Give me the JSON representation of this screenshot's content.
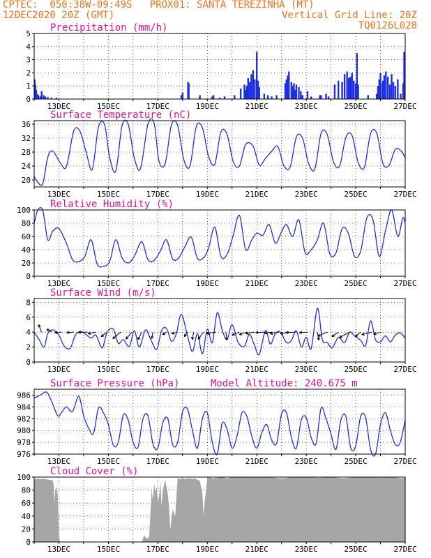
{
  "header": {
    "line1_left": "CPTEC:  050:38W-09:49S   PROX01: SANTA TEREZINHA (MT)",
    "line2_left": "12DEC2020 20Z (GMT)",
    "line2_right": "Vertical Grid Line: 20Z",
    "line3_right": "TQ0126L028"
  },
  "colors": {
    "header": "#e8731c",
    "title": "#e0139b",
    "line": "#1f2fe0",
    "cloud": "#a6a6a6",
    "arrow": "#000000"
  },
  "x_axis": {
    "tick_labels": [
      "13DEC",
      "15DEC",
      "17DEC",
      "19DEC",
      "21DEC",
      "23DEC",
      "25DEC",
      "27DEC"
    ],
    "tick_days": [
      13,
      15,
      17,
      19,
      21,
      23,
      25,
      27
    ],
    "range_days": [
      12.0,
      27.0
    ]
  },
  "chart_data": [
    {
      "type": "bar",
      "title": "Precipitation (mm/h)",
      "ylim": [
        0,
        5
      ],
      "yticks": [
        0,
        1,
        2,
        3,
        4,
        5
      ],
      "x_days": [
        12.02,
        12.05,
        12.08,
        12.12,
        12.17,
        12.25,
        12.3,
        12.38,
        12.45,
        12.55,
        12.7,
        12.9,
        17.95,
        18.0,
        18.22,
        18.25,
        18.7,
        19.2,
        19.25,
        19.5,
        19.7,
        20.1,
        20.35,
        20.5,
        20.55,
        20.6,
        20.65,
        20.72,
        20.78,
        20.85,
        20.92,
        21.0,
        21.05,
        21.1,
        21.3,
        21.45,
        21.6,
        21.8,
        22.15,
        22.2,
        22.25,
        22.3,
        22.4,
        22.45,
        22.5,
        22.55,
        22.6,
        22.7,
        22.78,
        22.85,
        23.05,
        23.2,
        23.55,
        23.6,
        23.8,
        23.9,
        24.15,
        24.3,
        24.45,
        24.55,
        24.65,
        24.72,
        24.78,
        24.85,
        24.92,
        25.0,
        25.05,
        25.1,
        25.5,
        25.85,
        25.9,
        25.95,
        26.0,
        26.02,
        26.1,
        26.15,
        26.22,
        26.3,
        26.38,
        26.45,
        26.52,
        26.6,
        26.7,
        26.82,
        26.92,
        26.96
      ],
      "values": [
        1.5,
        1.1,
        0.7,
        0.4,
        0.3,
        0.2,
        0.6,
        0.3,
        0.2,
        0.15,
        0.1,
        0.1,
        0.3,
        0.5,
        1.3,
        1.2,
        0.3,
        0.2,
        0.3,
        0.1,
        0.2,
        0.3,
        0.8,
        1.1,
        0.7,
        1.0,
        1.6,
        1.3,
        1.9,
        2.2,
        1.5,
        3.6,
        1.4,
        0.9,
        0.4,
        0.3,
        0.2,
        0.3,
        1.2,
        1.5,
        1.8,
        2.1,
        1.3,
        1.0,
        1.2,
        0.7,
        1.1,
        0.9,
        0.6,
        0.3,
        0.6,
        0.2,
        0.3,
        0.3,
        0.4,
        0.2,
        1.1,
        1.4,
        1.3,
        1.9,
        2.1,
        1.6,
        1.7,
        2.0,
        1.4,
        1.2,
        3.5,
        1.1,
        0.3,
        0.4,
        1.0,
        1.5,
        2.0,
        1.2,
        1.4,
        1.8,
        2.1,
        1.7,
        1.1,
        1.9,
        1.3,
        1.0,
        1.5,
        0.4,
        1.2,
        3.6
      ]
    },
    {
      "type": "line",
      "title": "Surface Temperature (nC)",
      "ylim": [
        18,
        37
      ],
      "yticks": [
        20,
        24,
        28,
        32,
        36
      ],
      "series": [
        {
          "x_days": [
            12.0,
            12.15,
            12.35,
            12.55,
            12.75,
            13.05,
            13.3,
            13.6,
            13.85,
            14.1,
            14.35,
            14.6,
            14.85,
            15.05,
            15.3,
            15.55,
            15.8,
            16.05,
            16.3,
            16.6,
            16.85,
            17.05,
            17.3,
            17.55,
            17.8,
            18.05,
            18.3,
            18.55,
            18.8,
            19.05,
            19.3,
            19.55,
            19.8,
            20.05,
            20.3,
            20.55,
            20.85,
            21.1,
            21.35,
            21.6,
            21.85,
            22.1,
            22.35,
            22.6,
            22.85,
            23.1,
            23.35,
            23.6,
            23.85,
            24.1,
            24.35,
            24.6,
            24.85,
            25.1,
            25.35,
            25.6,
            25.85,
            26.1,
            26.35,
            26.6,
            26.85,
            27.0
          ],
          "values": [
            21.0,
            19.3,
            19.0,
            26.5,
            28.3,
            25.0,
            23.8,
            34.0,
            34.0,
            28.0,
            23.0,
            35.2,
            35.8,
            26.5,
            22.5,
            35.5,
            36.0,
            26.3,
            23.3,
            36.0,
            36.2,
            25.3,
            24.8,
            35.8,
            35.7,
            25.8,
            24.0,
            35.2,
            35.0,
            26.8,
            24.5,
            33.8,
            33.0,
            25.2,
            24.0,
            30.2,
            29.7,
            24.3,
            26.2,
            28.2,
            29.6,
            24.0,
            23.7,
            32.3,
            32.0,
            24.6,
            23.2,
            33.4,
            33.0,
            25.2,
            24.0,
            32.2,
            32.8,
            25.0,
            23.6,
            33.3,
            33.4,
            24.7,
            24.2,
            28.8,
            28.2,
            26.3
          ]
        }
      ]
    },
    {
      "type": "line",
      "title": "Relative Humidity (%)",
      "ylim": [
        0,
        100
      ],
      "yticks": [
        0,
        20,
        40,
        60,
        80,
        100
      ],
      "series": [
        {
          "x_days": [
            12.0,
            12.15,
            12.35,
            12.55,
            12.75,
            13.0,
            13.3,
            13.55,
            13.8,
            14.05,
            14.3,
            14.55,
            14.8,
            15.05,
            15.3,
            15.55,
            15.8,
            16.05,
            16.35,
            16.6,
            16.85,
            17.1,
            17.35,
            17.6,
            17.85,
            18.1,
            18.35,
            18.6,
            18.85,
            19.05,
            19.3,
            19.55,
            19.8,
            20.05,
            20.3,
            20.55,
            20.8,
            21.0,
            21.25,
            21.5,
            21.75,
            22.0,
            22.2,
            22.45,
            22.7,
            22.95,
            23.2,
            23.45,
            23.7,
            23.95,
            24.2,
            24.45,
            24.7,
            24.95,
            25.2,
            25.45,
            25.7,
            25.95,
            26.2,
            26.45,
            26.7,
            26.9,
            27.0
          ],
          "values": [
            80.0,
            100.0,
            99.0,
            55.0,
            68.0,
            72.0,
            50.0,
            25.0,
            22.0,
            30.0,
            55.0,
            18.0,
            15.0,
            22.0,
            55.0,
            28.0,
            20.0,
            30.0,
            52.0,
            25.0,
            24.0,
            38.0,
            55.0,
            26.0,
            28.0,
            45.0,
            59.0,
            27.0,
            28.0,
            42.0,
            74.0,
            30.0,
            33.0,
            62.0,
            92.0,
            40.0,
            55.0,
            65.0,
            62.0,
            78.0,
            50.0,
            67.0,
            78.0,
            60.0,
            85.0,
            36.0,
            40.0,
            55.0,
            80.0,
            34.0,
            35.0,
            72.0,
            65.0,
            30.0,
            38.0,
            88.0,
            85.0,
            30.0,
            68.0,
            100.0,
            60.0,
            88.0,
            80.0
          ]
        }
      ]
    },
    {
      "type": "line",
      "title": "Surface Wind (m/s)",
      "ylim": [
        0,
        8.5
      ],
      "yticks": [
        0,
        2,
        4,
        6,
        8
      ],
      "series": [
        {
          "x_days": [
            12.0,
            12.2,
            12.4,
            12.55,
            12.75,
            13.0,
            13.2,
            13.45,
            13.65,
            13.85,
            14.05,
            14.3,
            14.5,
            14.75,
            14.95,
            15.2,
            15.4,
            15.6,
            15.85,
            16.05,
            16.25,
            16.5,
            16.7,
            16.95,
            17.15,
            17.35,
            17.55,
            17.75,
            17.95,
            18.2,
            18.4,
            18.6,
            18.8,
            19.0,
            19.2,
            19.4,
            19.6,
            19.8,
            20.0,
            20.25,
            20.5,
            20.7,
            20.9,
            21.1,
            21.35,
            21.55,
            21.75,
            21.95,
            22.2,
            22.4,
            22.6,
            22.8,
            23.0,
            23.2,
            23.45,
            23.65,
            23.85,
            24.05,
            24.3,
            24.55,
            24.75,
            24.95,
            25.2,
            25.4,
            25.6,
            25.8,
            26.0,
            26.2,
            26.4,
            26.6,
            26.8,
            27.0
          ],
          "values": [
            4.0,
            3.0,
            2.0,
            3.8,
            4.3,
            3.6,
            2.2,
            1.8,
            3.5,
            4.1,
            3.8,
            3.2,
            3.6,
            1.9,
            4.0,
            4.4,
            2.5,
            3.0,
            2.1,
            4.2,
            2.0,
            4.3,
            3.1,
            1.7,
            4.2,
            4.5,
            2.8,
            3.8,
            6.4,
            3.5,
            1.4,
            3.8,
            1.1,
            4.4,
            2.6,
            6.6,
            4.3,
            3.0,
            5.0,
            2.6,
            2.1,
            3.7,
            2.3,
            1.0,
            4.2,
            2.4,
            3.8,
            4.0,
            2.6,
            2.9,
            4.2,
            2.0,
            3.3,
            1.8,
            7.2,
            3.0,
            2.6,
            1.9,
            3.3,
            2.6,
            4.0,
            3.5,
            2.9,
            2.2,
            5.5,
            3.0,
            2.7,
            3.5,
            2.7,
            3.6,
            3.9,
            3.2
          ]
        }
      ],
      "wind_arrows": {
        "x_days": [
          12.3,
          12.7,
          13.1,
          13.6,
          14.15,
          14.5,
          14.95,
          15.5,
          15.95,
          16.35,
          16.8,
          17.35,
          17.8,
          18.2,
          18.45,
          18.85,
          19.35,
          19.75,
          20.3,
          20.6,
          20.9,
          21.3,
          21.65,
          21.9,
          22.3,
          22.6,
          23.05,
          23.45,
          23.85,
          24.3,
          24.75,
          25.2,
          25.65,
          26.05,
          26.6,
          26.95
        ],
        "u": [
          -1.2,
          -1.9,
          -2.6,
          -2.8,
          -3.6,
          -3.2,
          -2.4,
          -3.2,
          -2.4,
          -1.5,
          -0.5,
          -1.6,
          -2.4,
          -1.3,
          -0.6,
          -2.2,
          -3.8,
          0.4,
          -3.0,
          -3.0,
          -3.4,
          -3.4,
          -3.4,
          -3.6,
          -3.4,
          -4.2,
          -3.2,
          0.6,
          -3.8,
          -2.6,
          -4.0,
          -2.2,
          -4.0,
          -3.2,
          0.0,
          0.0
        ],
        "v": [
          3.0,
          1.2,
          -0.2,
          -0.2,
          -0.1,
          -0.6,
          -1.8,
          -2.6,
          -2.8,
          -3.0,
          -2.6,
          -1.0,
          -0.6,
          -1.8,
          -3.0,
          -2.8,
          -0.6,
          -3.2,
          -1.2,
          -1.0,
          -0.6,
          -0.2,
          -0.4,
          -0.6,
          -0.6,
          -0.2,
          -0.2,
          -3.2,
          -1.6,
          -1.8,
          -2.2,
          -1.8,
          -1.0,
          -0.8,
          0.0,
          0.0
        ]
      }
    },
    {
      "type": "line",
      "title": "Surface Pressure (hPa)",
      "title_note": "Model Altitude: 240.675 m",
      "ylim": [
        976,
        987
      ],
      "yticks": [
        976,
        978,
        980,
        982,
        984,
        986
      ],
      "series": [
        {
          "x_days": [
            12.0,
            12.25,
            12.5,
            12.7,
            12.95,
            13.1,
            13.3,
            13.55,
            13.8,
            14.0,
            14.2,
            14.4,
            14.6,
            14.8,
            15.0,
            15.2,
            15.4,
            15.6,
            15.8,
            16.0,
            16.2,
            16.4,
            16.6,
            16.8,
            17.0,
            17.2,
            17.4,
            17.6,
            17.8,
            18.0,
            18.2,
            18.4,
            18.6,
            18.8,
            19.0,
            19.2,
            19.4,
            19.6,
            19.8,
            20.0,
            20.2,
            20.4,
            20.6,
            20.8,
            21.0,
            21.2,
            21.4,
            21.6,
            21.8,
            22.0,
            22.2,
            22.4,
            22.6,
            22.8,
            23.0,
            23.2,
            23.4,
            23.6,
            23.8,
            24.0,
            24.2,
            24.4,
            24.6,
            24.8,
            25.0,
            25.2,
            25.4,
            25.6,
            25.8,
            26.0,
            26.2,
            26.4,
            26.6,
            26.8,
            27.0
          ],
          "values": [
            985.5,
            986.0,
            986.5,
            985.0,
            982.5,
            983.0,
            984.0,
            983.2,
            985.8,
            982.5,
            980.4,
            979.5,
            983.8,
            983.0,
            981.0,
            977.5,
            978.0,
            982.6,
            981.8,
            978.0,
            977.2,
            982.0,
            982.5,
            977.8,
            977.0,
            981.3,
            982.0,
            977.6,
            978.0,
            983.2,
            983.6,
            980.0,
            977.0,
            982.0,
            983.0,
            978.0,
            976.0,
            981.2,
            980.2,
            977.0,
            979.0,
            983.0,
            982.4,
            979.0,
            977.0,
            979.6,
            981.0,
            978.4,
            977.8,
            982.8,
            983.0,
            978.8,
            977.0,
            981.8,
            982.2,
            978.8,
            977.8,
            983.8,
            982.0,
            979.4,
            976.8,
            981.8,
            982.4,
            977.0,
            977.4,
            982.4,
            982.2,
            976.8,
            976.0,
            981.0,
            983.0,
            980.0,
            977.6,
            978.0,
            981.8
          ]
        }
      ]
    },
    {
      "type": "area",
      "title": "Cloud Cover (%)",
      "ylim": [
        0,
        100
      ],
      "yticks": [
        0,
        20,
        40,
        60,
        80,
        100
      ],
      "series": [
        {
          "x_days": [
            12.0,
            12.1,
            12.2,
            12.4,
            12.6,
            12.75,
            12.78,
            12.82,
            12.85,
            12.9,
            12.95,
            13.0,
            13.05,
            13.1,
            13.13,
            13.2,
            13.3,
            13.4,
            13.45,
            13.5,
            13.55,
            13.6,
            13.65,
            13.8,
            14.0,
            14.5,
            15.0,
            15.5,
            16.0,
            16.2,
            16.3,
            16.35,
            16.45,
            16.55,
            16.65,
            16.75,
            16.78,
            16.8,
            16.85,
            16.9,
            16.95,
            17.0,
            17.05,
            17.1,
            17.15,
            17.2,
            17.3,
            17.4,
            17.45,
            17.5,
            17.6,
            17.7,
            17.8,
            17.9,
            18.0,
            18.1,
            18.2,
            18.3,
            18.4,
            18.5,
            18.6,
            18.7,
            18.8,
            18.85,
            18.9,
            18.95,
            19.0,
            19.05,
            19.1,
            19.2,
            19.4,
            19.6,
            19.8,
            20.0,
            20.5,
            21.0,
            21.5,
            22.0,
            22.5,
            23.0,
            23.5,
            24.0,
            24.5,
            25.0,
            25.5,
            26.0,
            26.5,
            26.9,
            27.0
          ],
          "values": [
            96,
            98,
            97,
            97,
            96,
            95,
            90,
            60,
            80,
            85,
            75,
            10,
            0,
            0,
            0,
            0,
            0,
            0,
            0,
            0,
            0,
            0,
            0,
            0,
            0,
            0,
            0,
            0,
            0,
            0,
            0,
            0,
            10,
            5,
            8,
            82,
            70,
            65,
            90,
            78,
            85,
            60,
            70,
            92,
            55,
            80,
            96,
            75,
            55,
            20,
            50,
            40,
            98,
            97,
            98,
            97,
            98,
            98,
            97,
            98,
            96,
            94,
            75,
            40,
            65,
            80,
            99,
            99,
            100,
            98,
            99,
            100,
            98,
            100,
            100,
            99,
            100,
            98,
            100,
            100,
            99,
            100,
            98,
            100,
            100,
            99,
            100,
            98,
            100
          ]
        }
      ]
    }
  ]
}
